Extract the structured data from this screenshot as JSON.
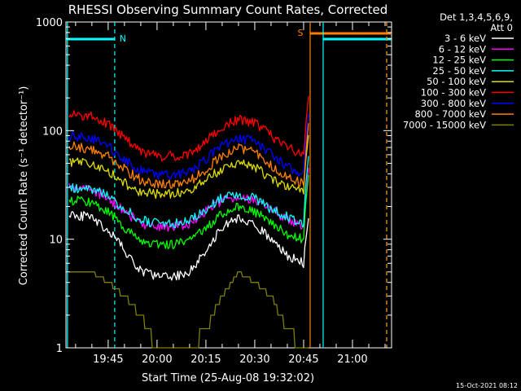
{
  "chart_data": {
    "type": "line",
    "title": "RHESSI Observing Summary Count Rates, Corrected",
    "xlabel": "Start Time (25-Aug-08 19:32:02)",
    "ylabel": "Corrected Count Rate (s⁻¹ detector⁻¹)",
    "yscale": "log",
    "ylim": [
      1,
      1000
    ],
    "xlim": [
      "19:32:02",
      "21:12:00"
    ],
    "x_tick_labels": [
      "19:45",
      "20:00",
      "20:15",
      "20:30",
      "20:45",
      "21:00"
    ],
    "y_tick_labels": [
      "1",
      "10",
      "100",
      "1000"
    ],
    "legend_header": [
      "Det 1,3,4,5,6,9,",
      "Att 0"
    ],
    "legend_placement": "right-outside",
    "footer_timestamp": "15-Oct-2021 08:12",
    "grid": false,
    "background": "#000000",
    "flags": [
      {
        "label": "N",
        "start": "19:32:02",
        "end": "19:47:00",
        "color": "#00ffff"
      },
      {
        "label": "S",
        "start": "20:47:00",
        "end": "21:12:00",
        "color": "#ff8000"
      },
      {
        "label": "",
        "start": "20:51:00",
        "end": "21:12:00",
        "color": "#00ffff"
      }
    ],
    "vertical_markers": [
      {
        "time": "19:32:30",
        "color": "#00ffff",
        "style": "solid"
      },
      {
        "time": "19:47:00",
        "color": "#00ffff",
        "style": "dashed"
      },
      {
        "time": "20:47:00",
        "color": "#ff8000",
        "style": "solid"
      },
      {
        "time": "20:51:00",
        "color": "#00ffff",
        "style": "solid"
      },
      {
        "time": "21:10:30",
        "color": "#00ffff",
        "style": "dashed"
      },
      {
        "time": "21:10:30",
        "color": "#ff8000",
        "style": "dashed"
      }
    ],
    "x": [
      "19:33",
      "19:40",
      "19:45",
      "19:50",
      "19:55",
      "20:00",
      "20:05",
      "20:10",
      "20:15",
      "20:20",
      "20:25",
      "20:30",
      "20:35",
      "20:40",
      "20:45",
      "20:46"
    ],
    "series": [
      {
        "name": "3 - 6 keV",
        "color": "#ffffff",
        "values": [
          17,
          16,
          12,
          8,
          5,
          4.5,
          4.5,
          5,
          8,
          13,
          16,
          14,
          10,
          7,
          6,
          12
        ]
      },
      {
        "name": "6 - 12 keV",
        "color": "#ff00ff",
        "values": [
          30,
          28,
          24,
          18,
          14,
          13,
          13,
          14,
          18,
          23,
          25,
          23,
          19,
          15,
          13,
          35
        ]
      },
      {
        "name": "12 - 25 keV",
        "color": "#00ff00",
        "values": [
          23,
          22,
          18,
          13,
          10,
          9,
          9,
          10,
          13,
          17,
          20,
          18,
          14,
          11,
          10,
          30
        ]
      },
      {
        "name": "25 - 50 keV",
        "color": "#00ffff",
        "values": [
          30,
          29,
          25,
          19,
          15,
          14,
          14,
          15,
          19,
          24,
          26,
          24,
          19,
          16,
          14,
          45
        ]
      },
      {
        "name": "50 - 100 keV",
        "color": "#dddd00",
        "values": [
          52,
          50,
          42,
          33,
          27,
          26,
          26,
          28,
          35,
          45,
          50,
          46,
          36,
          30,
          27,
          70
        ]
      },
      {
        "name": "100 - 300 keV",
        "color": "#ff0000",
        "values": [
          140,
          135,
          115,
          85,
          65,
          58,
          58,
          62,
          80,
          110,
          125,
          118,
          90,
          70,
          60,
          160
        ]
      },
      {
        "name": "300 - 800 keV",
        "color": "#0000ff",
        "values": [
          90,
          86,
          72,
          55,
          43,
          39,
          39,
          42,
          54,
          75,
          85,
          80,
          60,
          46,
          40,
          110
        ]
      },
      {
        "name": "800 - 7000 keV",
        "color": "#ff8000",
        "values": [
          72,
          68,
          58,
          44,
          35,
          32,
          32,
          34,
          44,
          60,
          68,
          64,
          48,
          37,
          32,
          90
        ]
      },
      {
        "name": "7000 - 15000 keV",
        "color": "#808000",
        "values": [
          5,
          5,
          4,
          3,
          2,
          1,
          1,
          1,
          1.5,
          3,
          5,
          4,
          3,
          1.5,
          1,
          1
        ]
      }
    ]
  }
}
